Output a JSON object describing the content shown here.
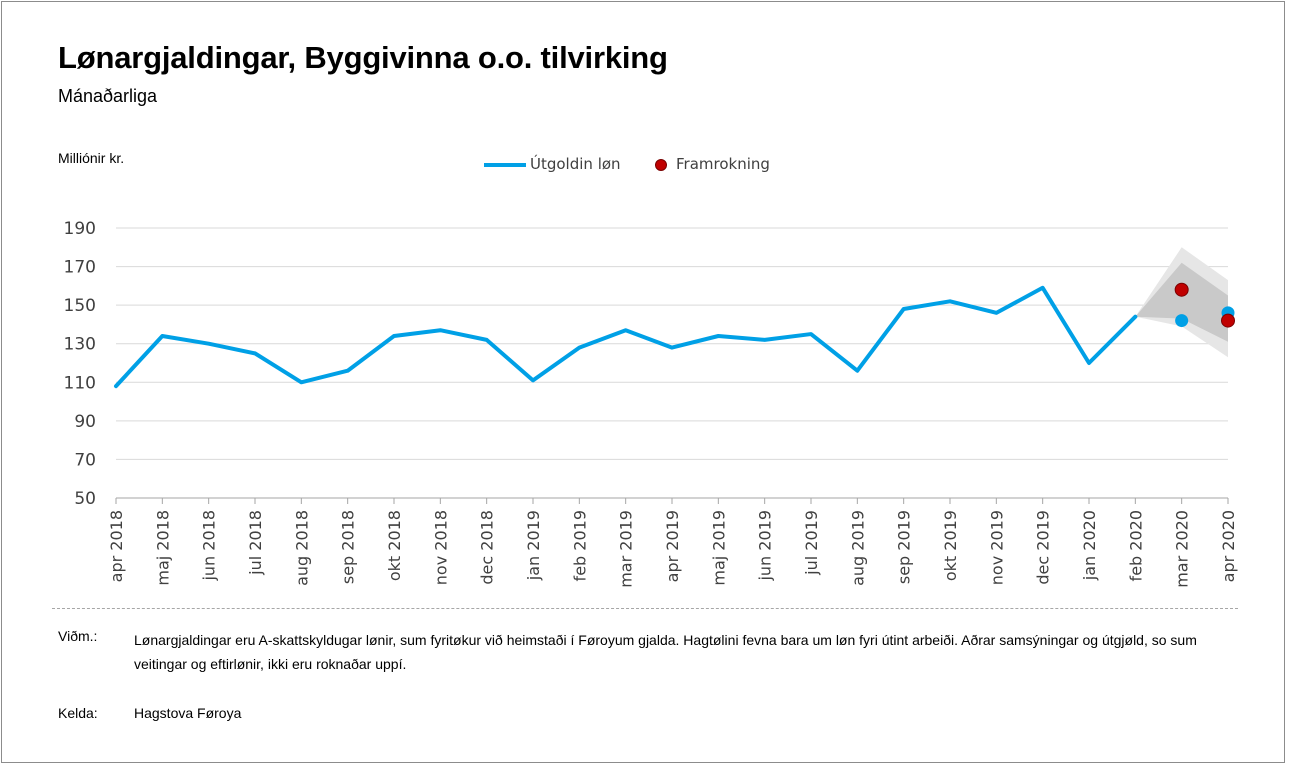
{
  "chart_data": {
    "type": "line",
    "title": "Lønargjaldingar, Byggivinna o.o. tilvirking",
    "subtitle": "Mánaðarliga",
    "ylabel": "Milliónir kr.",
    "xlabel": "",
    "ylim": [
      50,
      190
    ],
    "yticks": [
      "190",
      "170",
      "150",
      "130",
      "110",
      "90",
      "70",
      "50"
    ],
    "categories": [
      "apr 2018",
      "maj 2018",
      "jun 2018",
      "jul 2018",
      "aug 2018",
      "sep 2018",
      "okt 2018",
      "nov 2018",
      "dec 2018",
      "jan 2019",
      "feb 2019",
      "mar 2019",
      "apr 2019",
      "maj 2019",
      "jun 2019",
      "jul 2019",
      "aug 2019",
      "sep 2019",
      "okt 2019",
      "nov 2019",
      "dec 2019",
      "jan 2020",
      "feb 2020",
      "mar 2020",
      "apr 2020"
    ],
    "series": [
      {
        "name": "Útgoldin løn",
        "color": "#00a0e6",
        "values": [
          108,
          134,
          130,
          125,
          110,
          116,
          134,
          137,
          132,
          111,
          128,
          137,
          128,
          134,
          132,
          135,
          116,
          148,
          152,
          146,
          159,
          120,
          144,
          null,
          null
        ]
      },
      {
        "name": "Útgoldin løn (punktir)",
        "color": "#00a0e6",
        "values": [
          null,
          null,
          null,
          null,
          null,
          null,
          null,
          null,
          null,
          null,
          null,
          null,
          null,
          null,
          null,
          null,
          null,
          null,
          null,
          null,
          null,
          null,
          null,
          142,
          146
        ]
      },
      {
        "name": "Framrokning",
        "color": "#c00000",
        "values": [
          null,
          null,
          null,
          null,
          null,
          null,
          null,
          null,
          null,
          null,
          null,
          null,
          null,
          null,
          null,
          null,
          null,
          null,
          null,
          null,
          null,
          null,
          null,
          158,
          142
        ]
      }
    ],
    "bands": [
      {
        "name": "outer",
        "color": "#e6e6e6",
        "from": "feb 2020",
        "upper": [
          144,
          180,
          163
        ],
        "lower": [
          144,
          139,
          123
        ]
      },
      {
        "name": "inner",
        "color": "#c9c9c9",
        "from": "feb 2020",
        "upper": [
          144,
          172,
          155
        ],
        "lower": [
          144,
          143,
          131
        ]
      }
    ],
    "legend": [
      {
        "label": "Útgoldin løn",
        "kind": "line",
        "color": "#00a0e6"
      },
      {
        "label": "Framrokning",
        "kind": "dot",
        "color": "#c00000"
      }
    ]
  },
  "notes": {
    "note_label": "Viðm.:",
    "note_text": "Lønargjaldingar eru A-skattskyldugar lønir, sum fyritøkur við heimstaði í Føroyum gjalda. Hagtølini fevna bara um løn fyri útint arbeiði. Aðrar samsýningar og útgjøld, so sum veitingar og eftirlønir, ikki eru roknaðar uppí.",
    "source_label": "Kelda:",
    "source_text": "Hagstova Føroya"
  }
}
